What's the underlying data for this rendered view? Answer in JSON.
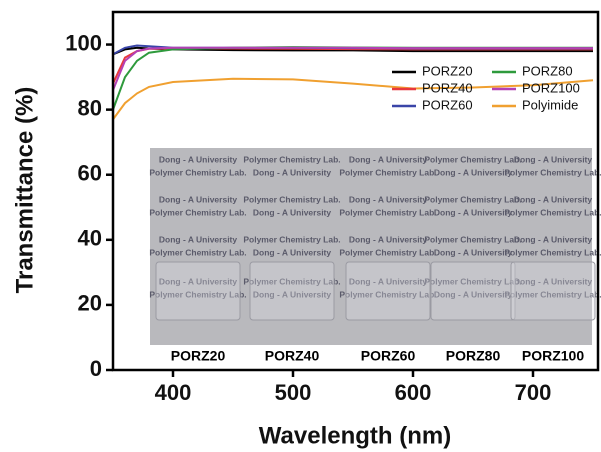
{
  "chart_data": {
    "type": "line",
    "xlabel": "Wavelength (nm)",
    "ylabel": "Transmittance (%)",
    "x": [
      350,
      360,
      370,
      380,
      400,
      450,
      500,
      550,
      600,
      650,
      700,
      750
    ],
    "series": [
      {
        "name": "PORZ20",
        "color": "#000000",
        "values": [
          97,
          98.5,
          99,
          98.8,
          98.5,
          98.3,
          98.2,
          98.2,
          98,
          98,
          98,
          98
        ]
      },
      {
        "name": "PORZ40",
        "color": "#e8383d",
        "values": [
          88,
          96,
          98,
          98.7,
          98.8,
          98.8,
          98.7,
          98.6,
          98.5,
          98.5,
          98.5,
          98.5
        ]
      },
      {
        "name": "PORZ60",
        "color": "#3a45a8",
        "values": [
          97,
          99,
          99.7,
          99.5,
          99,
          99,
          99,
          98.9,
          98.8,
          98.8,
          98.8,
          98.8
        ]
      },
      {
        "name": "PORZ80",
        "color": "#2e9a3c",
        "values": [
          80,
          90,
          95,
          97.5,
          98.5,
          99,
          99.2,
          99.1,
          99,
          99,
          99,
          99
        ]
      },
      {
        "name": "PORZ100",
        "color": "#b440b4",
        "values": [
          86,
          95,
          98,
          98.8,
          99,
          99,
          99,
          99,
          98.9,
          98.9,
          98.9,
          98.9
        ]
      },
      {
        "name": "Polyimide",
        "color": "#f0a030",
        "values": [
          77,
          82,
          85,
          87,
          88.5,
          89.5,
          89.3,
          88,
          86.5,
          86.8,
          87.5,
          89
        ]
      }
    ],
    "xlim": [
      350,
      750
    ],
    "xticks": [
      400,
      500,
      600,
      700
    ],
    "ylim": [
      0,
      110
    ],
    "yticks": [
      0,
      20,
      40,
      60,
      80,
      100
    ],
    "legend": "upper right",
    "inset_labels": [
      "PORZ20",
      "PORZ40",
      "PORZ60",
      "PORZ80",
      "PORZ100"
    ],
    "photo_text": [
      "Dong - A University",
      "Polymer Chemistry Lab."
    ]
  }
}
